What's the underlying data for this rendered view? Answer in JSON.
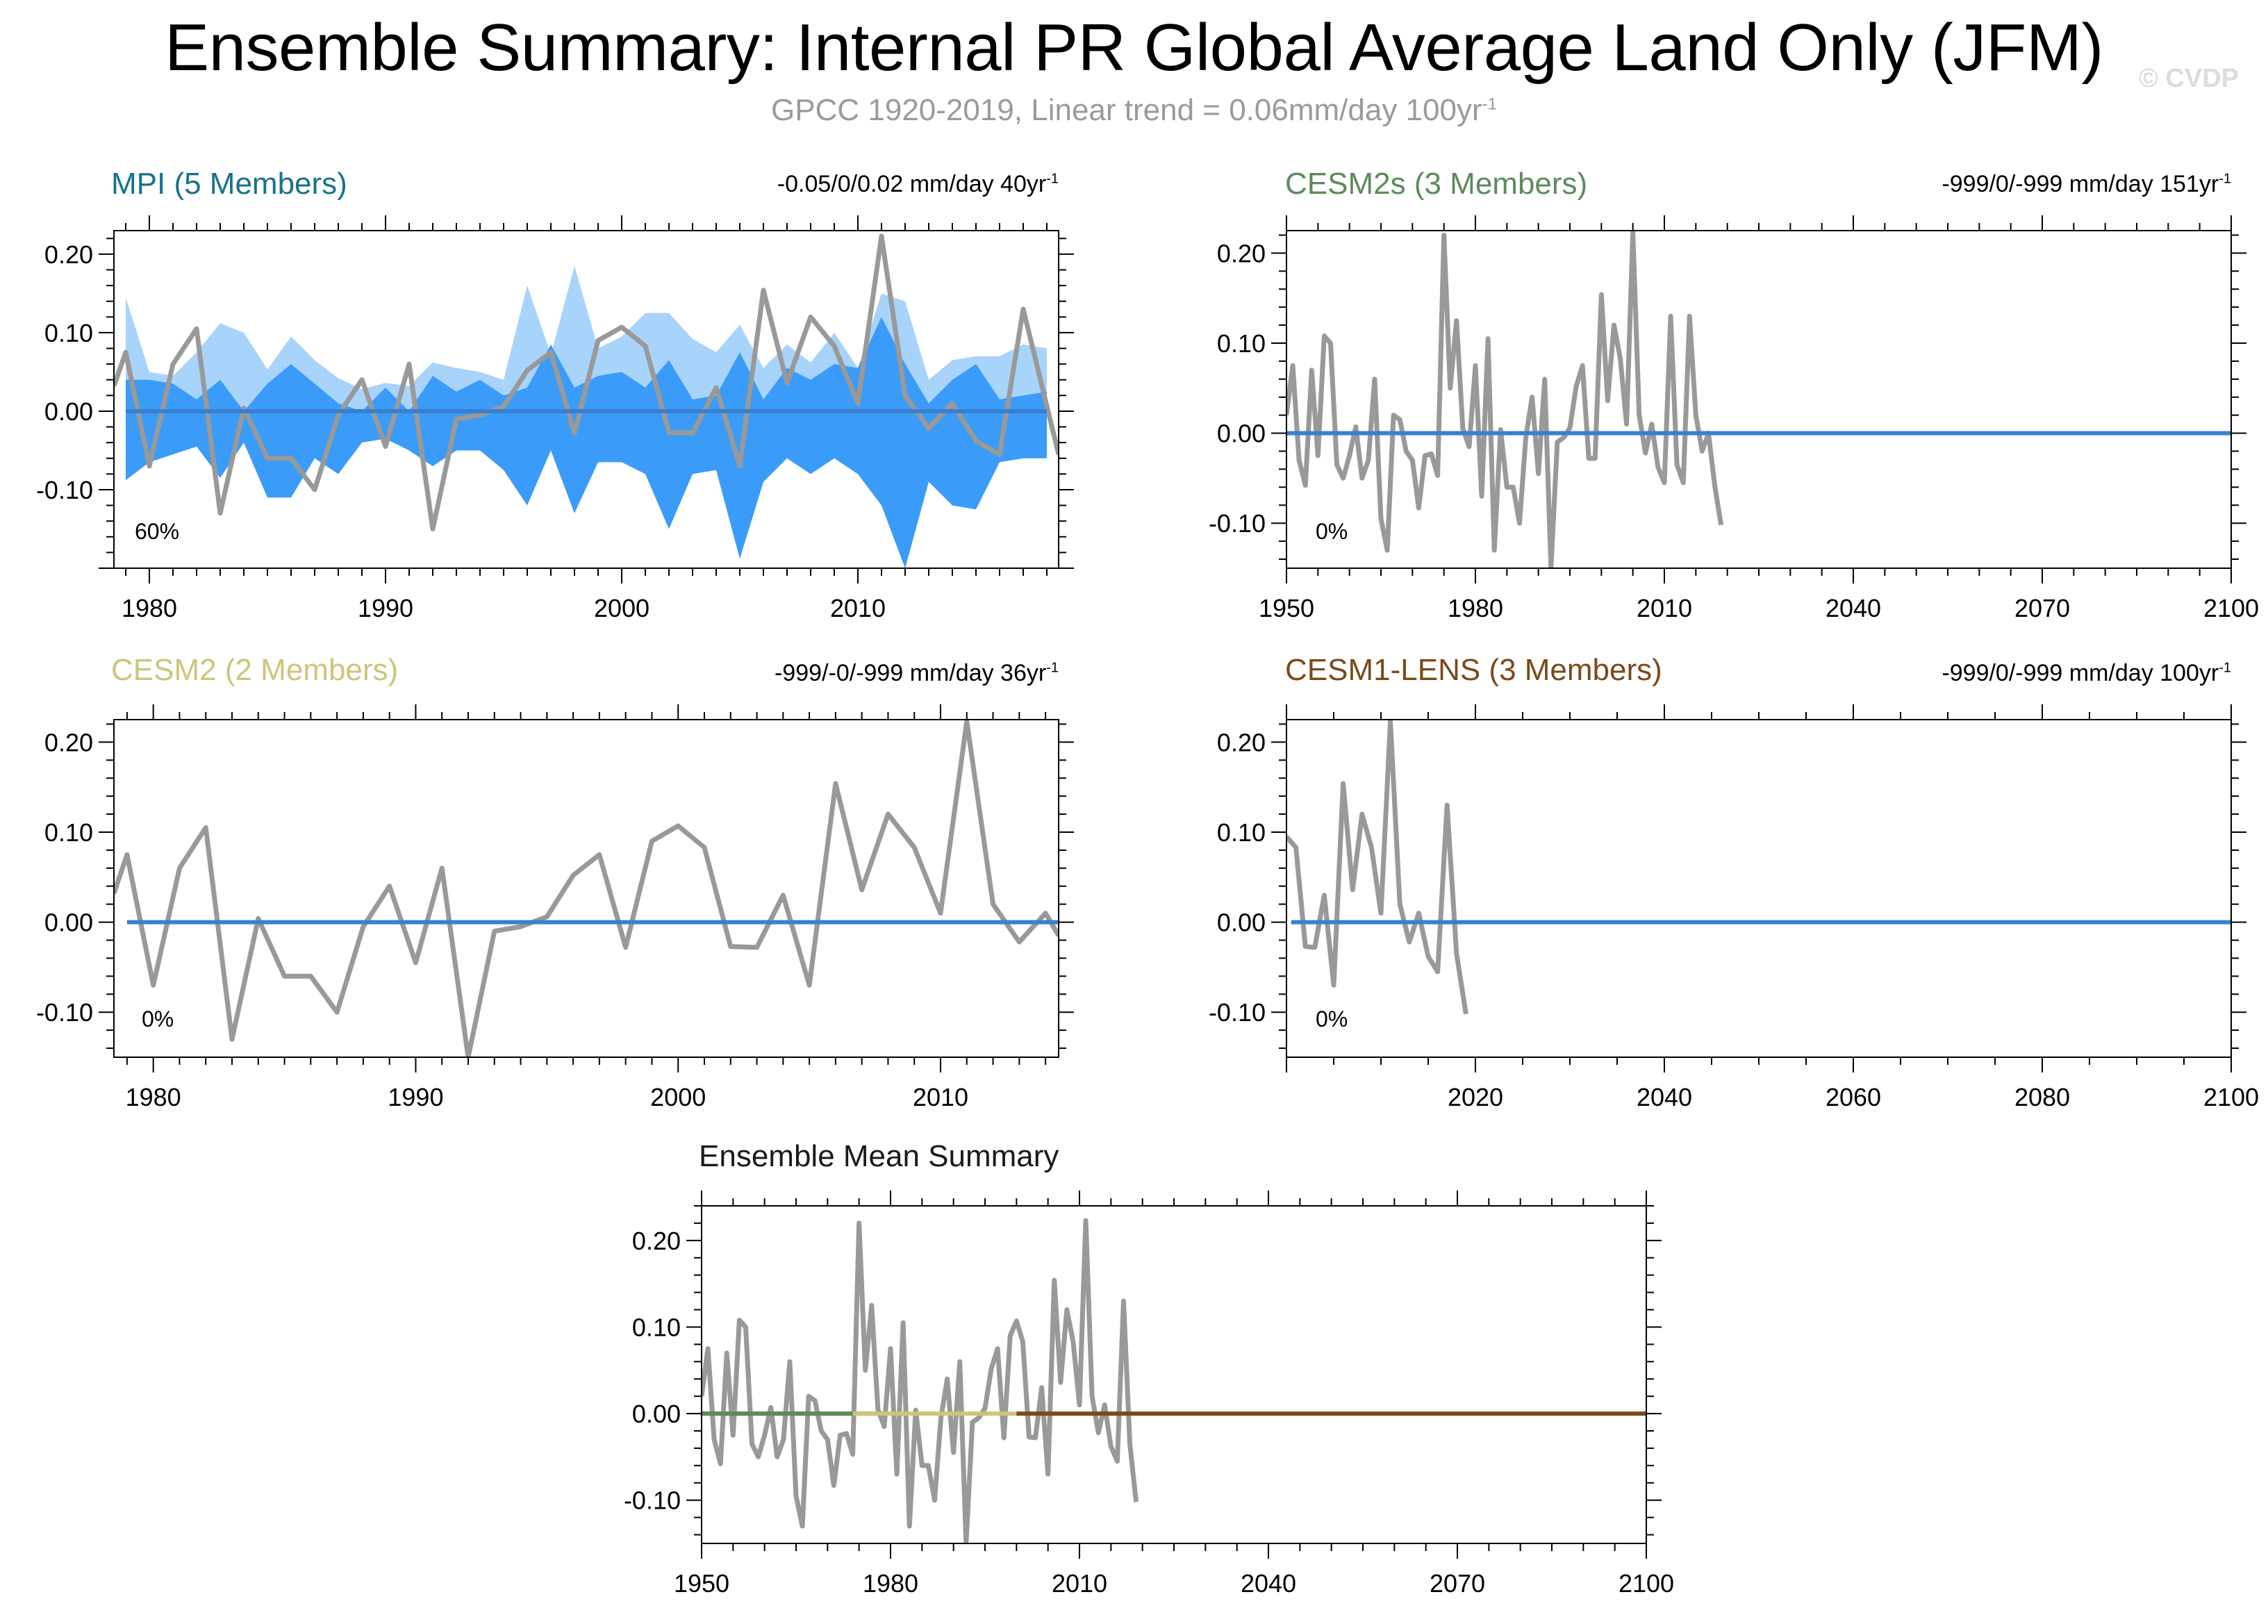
{
  "header": {
    "title": "Ensemble Summary: Internal PR Global Average Land Only (JFM)",
    "subtitle": "GPCC 1920-2019, Linear trend = 0.06mm/day 100yr",
    "subtitle_sup": "-1",
    "watermark": "© CVDP"
  },
  "colors": {
    "mpi": "#17728c",
    "cesm2s": "#5d8a5d",
    "cesm2": "#cfc47a",
    "cesm1": "#7a4a1a",
    "ensmean": "#1a1a1a",
    "obs_line": "#999999",
    "mean_line": "#3a7fd0",
    "band_outer": "#a8d3fb",
    "band_inner": "#3a9cf8"
  },
  "chart_data": [
    {
      "id": "mpi",
      "type": "line",
      "title": "MPI (5 Members)",
      "trend": "-0.05/0/0.02 mm/day 40yr",
      "trend_sup": "-1",
      "pct_label": "60%",
      "xlim": [
        1978.5,
        2018.5
      ],
      "ylim": [
        -0.2,
        0.23
      ],
      "xticks": [
        1980,
        1990,
        2000,
        2010
      ],
      "yticks": [
        0.2,
        0.1,
        0.0,
        -0.1
      ],
      "ytick_labels": [
        "0.20",
        "0.10",
        "0.00",
        "-0.10"
      ],
      "band": {
        "x": [
          1979,
          1980,
          1981,
          1982,
          1983,
          1984,
          1985,
          1986,
          1987,
          1988,
          1989,
          1990,
          1991,
          1992,
          1993,
          1994,
          1995,
          1996,
          1997,
          1998,
          1999,
          2000,
          2001,
          2002,
          2003,
          2004,
          2005,
          2006,
          2007,
          2008,
          2009,
          2010,
          2011,
          2012,
          2013,
          2014,
          2015,
          2016,
          2017,
          2018
        ],
        "outer_hi": [
          0.145,
          0.05,
          0.045,
          0.075,
          0.112,
          0.1,
          0.053,
          0.095,
          0.065,
          0.042,
          0.028,
          0.036,
          0.032,
          0.062,
          0.055,
          0.05,
          0.04,
          0.16,
          0.072,
          0.185,
          0.08,
          0.095,
          0.125,
          0.125,
          0.092,
          0.075,
          0.11,
          0.055,
          0.085,
          0.062,
          0.1,
          0.055,
          0.15,
          0.14,
          0.04,
          0.065,
          0.07,
          0.07,
          0.085,
          0.08
        ],
        "inner_hi": [
          0.04,
          0.04,
          0.035,
          0.015,
          0.04,
          0.0,
          0.035,
          0.06,
          0.035,
          0.01,
          0.0,
          0.03,
          0.0,
          0.045,
          0.025,
          0.04,
          0.02,
          0.03,
          0.085,
          0.03,
          0.045,
          0.05,
          0.03,
          0.065,
          0.015,
          0.02,
          0.075,
          0.015,
          0.055,
          0.04,
          0.06,
          0.055,
          0.12,
          0.06,
          0.01,
          0.04,
          0.06,
          0.015,
          0.02,
          0.025
        ],
        "inner_lo": [
          -0.088,
          -0.065,
          -0.055,
          -0.045,
          -0.085,
          -0.04,
          -0.11,
          -0.11,
          -0.06,
          -0.08,
          -0.04,
          -0.035,
          -0.05,
          -0.07,
          -0.05,
          -0.05,
          -0.075,
          -0.12,
          -0.05,
          -0.13,
          -0.065,
          -0.065,
          -0.08,
          -0.15,
          -0.08,
          -0.075,
          -0.188,
          -0.09,
          -0.06,
          -0.08,
          -0.06,
          -0.08,
          -0.12,
          -0.2,
          -0.09,
          -0.12,
          -0.125,
          -0.065,
          -0.06,
          -0.06
        ]
      },
      "series": [
        {
          "role": "obs",
          "x": [
            1978.5,
            1979,
            1980,
            1981,
            1982,
            1983,
            1984,
            1985,
            1986,
            1987,
            1988,
            1989,
            1990,
            1991,
            1992,
            1993,
            1994,
            1995,
            1996,
            1997,
            1998,
            1999,
            2000,
            2001,
            2002,
            2003,
            2004,
            2005,
            2006,
            2007,
            2008,
            2009,
            2010,
            2011,
            2012,
            2013,
            2014,
            2015,
            2016,
            2017,
            2018.5
          ],
          "y": [
            0.032,
            0.075,
            -0.07,
            0.06,
            0.105,
            -0.13,
            0.004,
            -0.06,
            -0.06,
            -0.1,
            -0.005,
            0.04,
            -0.045,
            0.06,
            -0.15,
            -0.01,
            -0.005,
            0.006,
            0.052,
            0.075,
            -0.028,
            0.09,
            0.107,
            0.083,
            -0.027,
            -0.028,
            0.03,
            -0.07,
            0.154,
            0.036,
            0.12,
            0.083,
            0.01,
            0.223,
            0.02,
            -0.022,
            0.01,
            -0.038,
            -0.055,
            0.13,
            -0.055
          ]
        },
        {
          "role": "mean",
          "x": [
            1979,
            2018
          ],
          "y": [
            0,
            0
          ]
        }
      ]
    },
    {
      "id": "cesm2s",
      "type": "line",
      "title": "CESM2s (3 Members)",
      "trend": "-999/0/-999 mm/day 151yr",
      "trend_sup": "-1",
      "pct_label": "0%",
      "xlim": [
        1950,
        2100
      ],
      "ylim": [
        -0.15,
        0.225
      ],
      "xticks": [
        1950,
        1980,
        2010,
        2040,
        2070,
        2100
      ],
      "yticks": [
        0.2,
        0.1,
        0.0,
        -0.1
      ],
      "ytick_labels": [
        "0.20",
        "0.10",
        "0.00",
        "-0.10"
      ],
      "series": [
        {
          "role": "obs",
          "x": [
            1950,
            1951,
            1952,
            1953,
            1954,
            1955,
            1956,
            1957,
            1958,
            1959,
            1960,
            1961,
            1962,
            1963,
            1964,
            1965,
            1966,
            1967,
            1968,
            1969,
            1970,
            1971,
            1972,
            1973,
            1974,
            1975,
            1976,
            1977,
            1978,
            1979,
            1980,
            1981,
            1982,
            1983,
            1984,
            1985,
            1986,
            1987,
            1988,
            1989,
            1990,
            1991,
            1992,
            1993,
            1994,
            1995,
            1996,
            1997,
            1998,
            1999,
            2000,
            2001,
            2002,
            2003,
            2004,
            2005,
            2006,
            2007,
            2008,
            2009,
            2010,
            2011,
            2012,
            2013,
            2014,
            2015,
            2016,
            2017,
            2018,
            2019
          ],
          "y": [
            0.02,
            0.075,
            -0.03,
            -0.058,
            0.07,
            -0.025,
            0.108,
            0.1,
            -0.035,
            -0.05,
            -0.025,
            0.007,
            -0.05,
            -0.03,
            0.06,
            -0.095,
            -0.13,
            0.02,
            0.015,
            -0.02,
            -0.03,
            -0.083,
            -0.025,
            -0.023,
            -0.047,
            0.22,
            0.05,
            0.125,
            0.005,
            -0.015,
            0.075,
            -0.07,
            0.105,
            -0.13,
            0.004,
            -0.06,
            -0.06,
            -0.1,
            -0.005,
            0.04,
            -0.045,
            0.06,
            -0.15,
            -0.01,
            -0.005,
            0.006,
            0.052,
            0.075,
            -0.028,
            -0.028,
            0.154,
            0.036,
            0.12,
            0.083,
            0.01,
            0.223,
            0.02,
            -0.022,
            0.01,
            -0.038,
            -0.055,
            0.13,
            -0.035,
            -0.055,
            0.13,
            0.02,
            -0.02,
            0.0,
            -0.058,
            -0.102
          ]
        },
        {
          "role": "mean",
          "x": [
            1950,
            2100
          ],
          "y": [
            0,
            0
          ]
        }
      ]
    },
    {
      "id": "cesm2",
      "type": "line",
      "title": "CESM2 (2 Members)",
      "trend": "-999/-0/-999 mm/day 36yr",
      "trend_sup": "-1",
      "pct_label": "0%",
      "xlim": [
        1978.5,
        2014.5
      ],
      "ylim": [
        -0.15,
        0.225
      ],
      "xticks": [
        1980,
        1990,
        2000,
        2010
      ],
      "yticks": [
        0.2,
        0.1,
        0.0,
        -0.1
      ],
      "ytick_labels": [
        "0.20",
        "0.10",
        "0.00",
        "-0.10"
      ],
      "series": [
        {
          "role": "obs",
          "x": [
            1978.5,
            1979,
            1980,
            1981,
            1982,
            1983,
            1984,
            1985,
            1986,
            1987,
            1988,
            1989,
            1990,
            1991,
            1992,
            1993,
            1994,
            1995,
            1996,
            1997,
            1998,
            1999,
            2000,
            2001,
            2002,
            2003,
            2004,
            2005,
            2006,
            2007,
            2008,
            2009,
            2010,
            2011,
            2012,
            2013,
            2014,
            2014.5
          ],
          "y": [
            0.032,
            0.075,
            -0.07,
            0.06,
            0.105,
            -0.13,
            0.004,
            -0.06,
            -0.06,
            -0.1,
            -0.005,
            0.04,
            -0.045,
            0.06,
            -0.15,
            -0.01,
            -0.005,
            0.006,
            0.052,
            0.075,
            -0.028,
            0.09,
            0.107,
            0.083,
            -0.027,
            -0.028,
            0.03,
            -0.07,
            0.154,
            0.036,
            0.12,
            0.083,
            0.01,
            0.223,
            0.02,
            -0.022,
            0.01,
            -0.015
          ]
        },
        {
          "role": "mean",
          "x": [
            1979,
            2014.5
          ],
          "y": [
            0,
            0
          ]
        }
      ]
    },
    {
      "id": "cesm1",
      "type": "line",
      "title": "CESM1-LENS (3 Members)",
      "trend": "-999/0/-999 mm/day 100yr",
      "trend_sup": "-1",
      "pct_label": "0%",
      "xlim": [
        2000,
        2100
      ],
      "ylim": [
        -0.15,
        0.225
      ],
      "xticks": [
        2020,
        2040,
        2060,
        2080,
        2100
      ],
      "yticks": [
        0.2,
        0.1,
        0.0,
        -0.1
      ],
      "ytick_labels": [
        "0.20",
        "0.10",
        "0.00",
        "-0.10"
      ],
      "series": [
        {
          "role": "obs",
          "x": [
            2000,
            2001,
            2002,
            2003,
            2004,
            2005,
            2006,
            2007,
            2008,
            2009,
            2010,
            2011,
            2012,
            2013,
            2014,
            2015,
            2016,
            2017,
            2018,
            2019
          ],
          "y": [
            0.095,
            0.083,
            -0.027,
            -0.028,
            0.03,
            -0.07,
            0.154,
            0.036,
            0.12,
            0.083,
            0.01,
            0.223,
            0.02,
            -0.022,
            0.01,
            -0.038,
            -0.055,
            0.13,
            -0.035,
            -0.102
          ]
        },
        {
          "role": "mean",
          "x": [
            2000.5,
            2100
          ],
          "y": [
            0,
            0
          ]
        }
      ]
    },
    {
      "id": "ensmean",
      "type": "line",
      "title": "Ensemble Mean Summary",
      "xlim": [
        1950,
        2100
      ],
      "ylim": [
        -0.15,
        0.24
      ],
      "xticks": [
        1950,
        1980,
        2010,
        2040,
        2070,
        2100
      ],
      "yticks": [
        0.2,
        0.1,
        0.0,
        -0.1
      ],
      "ytick_labels": [
        "0.20",
        "0.10",
        "0.00",
        "-0.10"
      ],
      "series": [
        {
          "role": "obs",
          "x": [
            1950,
            1951,
            1952,
            1953,
            1954,
            1955,
            1956,
            1957,
            1958,
            1959,
            1960,
            1961,
            1962,
            1963,
            1964,
            1965,
            1966,
            1967,
            1968,
            1969,
            1970,
            1971,
            1972,
            1973,
            1974,
            1975,
            1976,
            1977,
            1978,
            1979,
            1980,
            1981,
            1982,
            1983,
            1984,
            1985,
            1986,
            1987,
            1988,
            1989,
            1990,
            1991,
            1992,
            1993,
            1994,
            1995,
            1996,
            1997,
            1998,
            1999,
            2000,
            2001,
            2002,
            2003,
            2004,
            2005,
            2006,
            2007,
            2008,
            2009,
            2010,
            2011,
            2012,
            2013,
            2014,
            2015,
            2016,
            2017,
            2018,
            2019
          ],
          "y": [
            0.02,
            0.075,
            -0.03,
            -0.058,
            0.07,
            -0.025,
            0.108,
            0.1,
            -0.035,
            -0.05,
            -0.025,
            0.007,
            -0.05,
            -0.03,
            0.06,
            -0.095,
            -0.13,
            0.02,
            0.015,
            -0.02,
            -0.03,
            -0.083,
            -0.025,
            -0.023,
            -0.047,
            0.22,
            0.05,
            0.125,
            0.005,
            -0.015,
            0.075,
            -0.07,
            0.105,
            -0.13,
            0.004,
            -0.06,
            -0.06,
            -0.1,
            -0.005,
            0.04,
            -0.045,
            0.06,
            -0.15,
            -0.01,
            -0.005,
            0.006,
            0.052,
            0.075,
            -0.028,
            0.09,
            0.107,
            0.083,
            -0.027,
            -0.028,
            0.03,
            -0.07,
            0.154,
            0.036,
            0.12,
            0.083,
            0.01,
            0.223,
            0.02,
            -0.022,
            0.01,
            -0.038,
            -0.055,
            0.13,
            -0.035,
            -0.102
          ]
        },
        {
          "role": "mpi",
          "x": [
            1950,
            1979
          ],
          "y": [
            0,
            0
          ]
        },
        {
          "role": "cesm2s",
          "x": [
            1950,
            1974
          ],
          "y": [
            0,
            0
          ]
        },
        {
          "role": "cesm2",
          "x": [
            1974,
            2000
          ],
          "y": [
            0,
            0
          ]
        },
        {
          "role": "cesm1",
          "x": [
            2000,
            2100
          ],
          "y": [
            0,
            0
          ]
        }
      ]
    }
  ]
}
